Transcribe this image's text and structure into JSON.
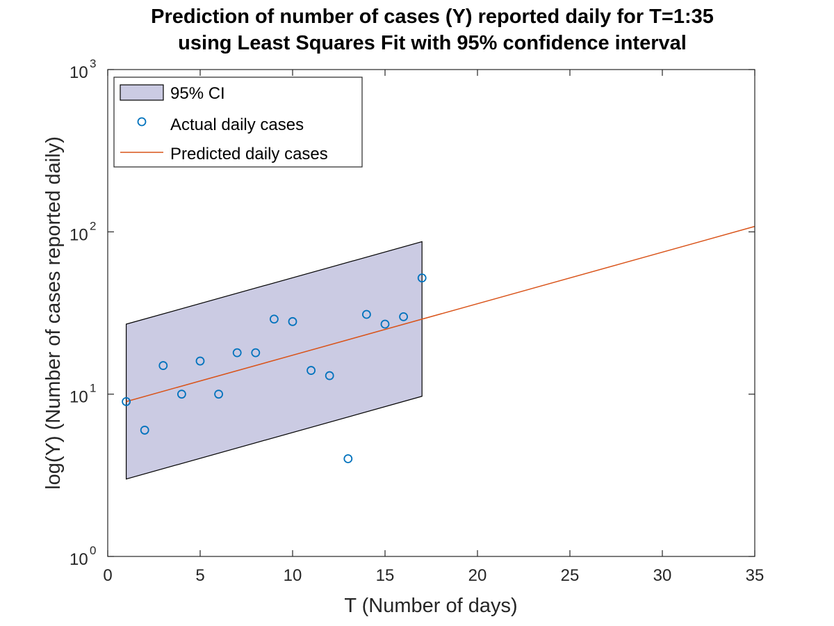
{
  "chart_data": {
    "type": "scatter",
    "title": [
      "Prediction of number of cases (Y) reported daily for T=1:35",
      "using Least Squares Fit with 95% confidence interval"
    ],
    "xlabel": "T (Number of days)",
    "ylabel": "log(Y) (Number of cases reported daily)",
    "xlim": [
      0,
      35
    ],
    "ylim": [
      1,
      1000
    ],
    "yscale": "log",
    "grid": false,
    "legend_position": "top-left",
    "xticks": [
      0,
      5,
      10,
      15,
      20,
      25,
      30,
      35
    ],
    "yticks": [
      {
        "value": 1,
        "base": "10",
        "exp": "0"
      },
      {
        "value": 10,
        "base": "10",
        "exp": "1"
      },
      {
        "value": 100,
        "base": "10",
        "exp": "2"
      },
      {
        "value": 1000,
        "base": "10",
        "exp": "3"
      }
    ],
    "series": [
      {
        "name": "95% CI",
        "kind": "band",
        "color": "#cbcbe3",
        "edge_color": "#000000",
        "x": [
          1,
          17
        ],
        "upper": [
          27,
          87
        ],
        "lower": [
          3,
          9.7
        ]
      },
      {
        "name": "Actual daily cases",
        "kind": "markers",
        "color": "#0072bd",
        "x": [
          1,
          2,
          3,
          4,
          5,
          6,
          7,
          8,
          9,
          10,
          11,
          12,
          13,
          14,
          15,
          16,
          17
        ],
        "y": [
          9,
          6,
          15,
          10,
          16,
          10,
          18,
          18,
          29,
          28,
          14,
          13,
          4,
          31,
          27,
          30,
          52
        ]
      },
      {
        "name": "Predicted daily cases",
        "kind": "line",
        "color": "#d95319",
        "x": [
          1,
          35
        ],
        "y": [
          9,
          108
        ]
      }
    ]
  }
}
